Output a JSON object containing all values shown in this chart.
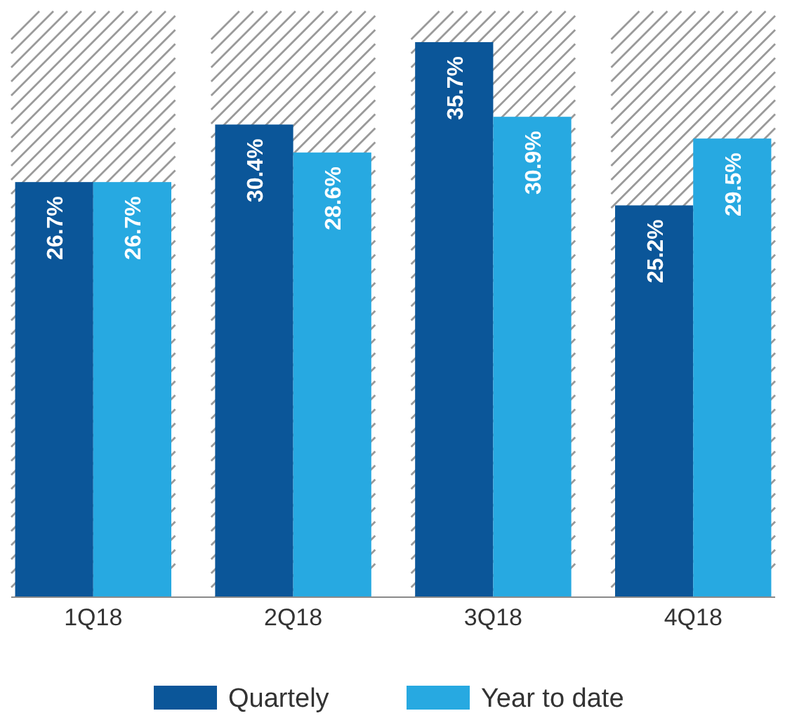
{
  "chart_data": {
    "type": "bar",
    "categories": [
      "1Q18",
      "2Q18",
      "3Q18",
      "4Q18"
    ],
    "series": [
      {
        "name": "Quartely",
        "color": "#0b5699",
        "values": [
          26.7,
          30.4,
          35.7,
          25.2
        ],
        "value_labels": [
          "26.7%",
          "30.4%",
          "35.7%",
          "25.2%"
        ]
      },
      {
        "name": "Year to date",
        "color": "#27a9e1",
        "values": [
          26.7,
          28.6,
          30.9,
          29.5
        ],
        "value_labels": [
          "26.7%",
          "28.6%",
          "30.9%",
          "29.5%"
        ]
      }
    ],
    "legend": "bottom"
  }
}
